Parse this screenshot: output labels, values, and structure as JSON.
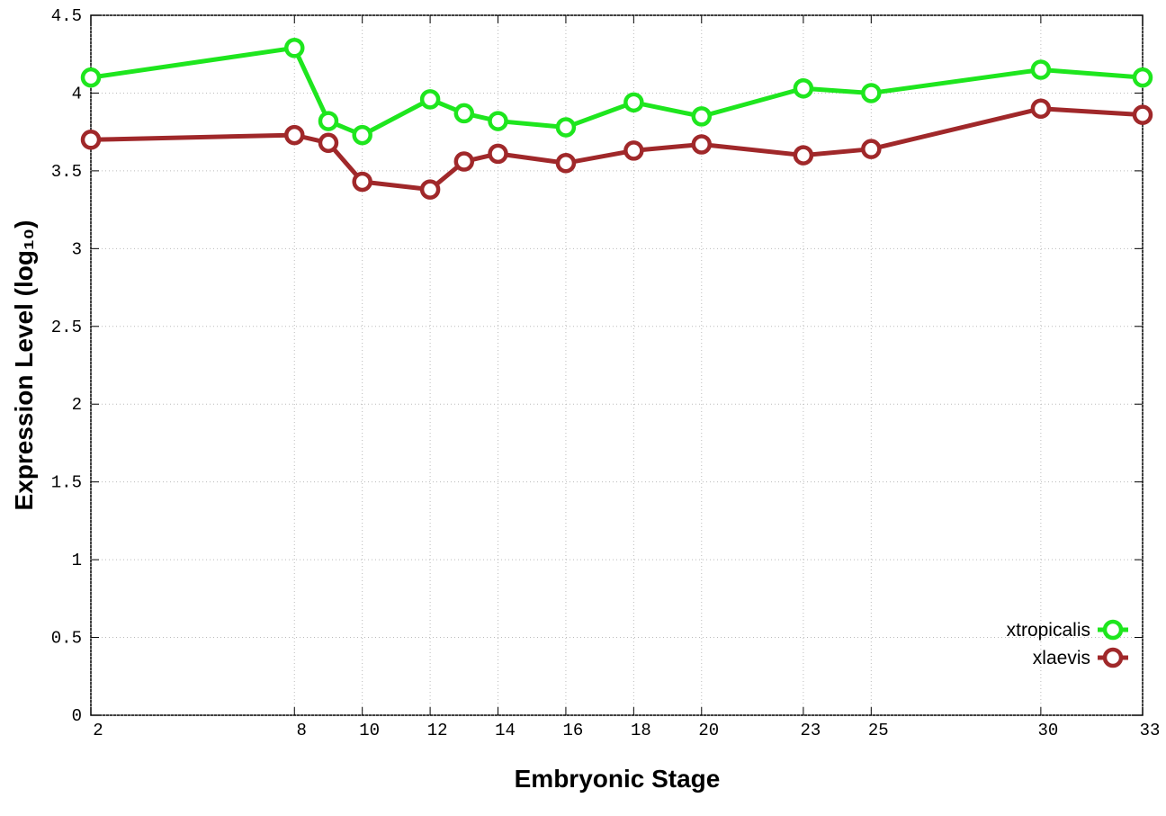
{
  "chart_data": {
    "type": "line",
    "xlabel": "Embryonic Stage",
    "ylabel": "Expression Level (log₁₀)",
    "x": [
      2,
      8,
      9,
      10,
      12,
      13,
      14,
      16,
      18,
      20,
      23,
      25,
      30,
      33
    ],
    "series": [
      {
        "name": "xtropicalis",
        "color": "#1ee61e",
        "values": [
          4.1,
          4.29,
          3.82,
          3.73,
          3.96,
          3.87,
          3.82,
          3.78,
          3.94,
          3.85,
          4.03,
          4.0,
          4.15,
          4.1
        ]
      },
      {
        "name": "xlaevis",
        "color": "#a0282a",
        "values": [
          3.7,
          3.73,
          3.68,
          3.43,
          3.38,
          3.56,
          3.61,
          3.55,
          3.63,
          3.67,
          3.6,
          3.64,
          3.9,
          3.86
        ]
      }
    ],
    "xlim": [
      2,
      33
    ],
    "xticks": [
      2,
      8,
      10,
      12,
      14,
      16,
      18,
      20,
      23,
      25,
      30,
      33
    ],
    "ylim": [
      0,
      4.5
    ],
    "yticks": [
      0,
      0.5,
      1,
      1.5,
      2,
      2.5,
      3,
      3.5,
      4,
      4.5
    ],
    "grid": true,
    "legend": "lower right"
  }
}
